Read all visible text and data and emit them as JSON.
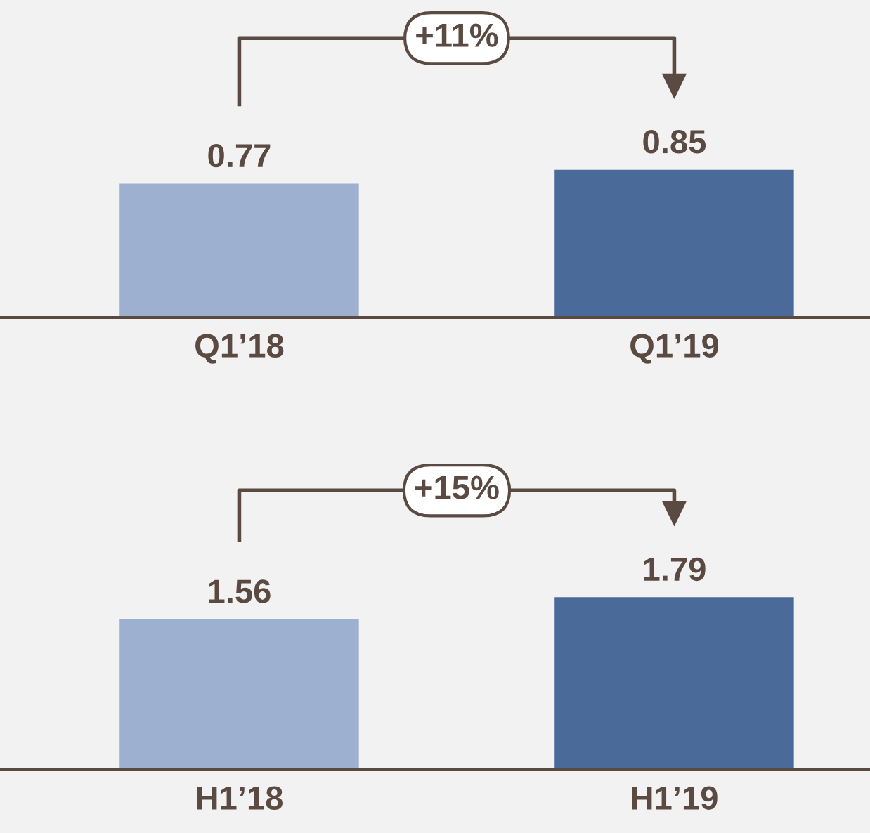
{
  "chart_data": [
    {
      "type": "bar",
      "categories": [
        "Q1’18",
        "Q1’19"
      ],
      "values": [
        0.77,
        0.85
      ],
      "colors": [
        "#9db0cf",
        "#4a6a9a"
      ],
      "data_labels": true,
      "annotations": [
        "+11%"
      ]
    },
    {
      "type": "bar",
      "categories": [
        "H1’18",
        "H1’19"
      ],
      "values": [
        1.56,
        1.79
      ],
      "colors": [
        "#9db0cf",
        "#4a6a9a"
      ],
      "data_labels": true,
      "annotations": [
        "+15%"
      ]
    }
  ]
}
